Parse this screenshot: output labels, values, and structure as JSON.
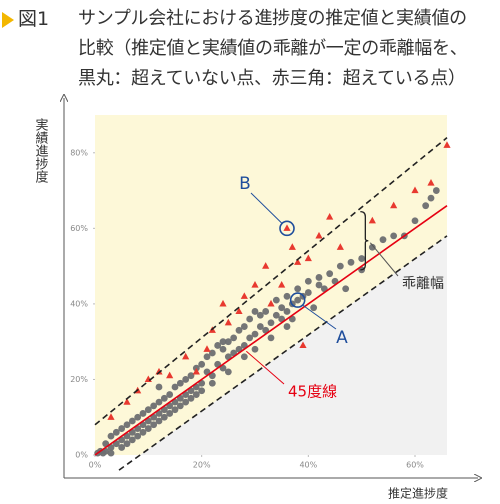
{
  "chart_data": {
    "type": "scatter",
    "figure_label": "図1",
    "title_lines": [
      "サンプル会社における進捗度の推定値と実績値の",
      "比較（推定値と実績値の乖離が一定の乖離幅を、",
      "黒丸：超えていない点、赤三角：超えている点）"
    ],
    "xlabel": "推定進捗度",
    "ylabel": "実績進捗度",
    "xlim": [
      0,
      66
    ],
    "ylim": [
      0,
      90
    ],
    "xticks": [
      {
        "value": 0,
        "label": "0%"
      },
      {
        "value": 20,
        "label": "20%"
      },
      {
        "value": 40,
        "label": "40%"
      },
      {
        "value": 60,
        "label": "60%"
      }
    ],
    "yticks": [
      {
        "value": 0,
        "label": "0%"
      },
      {
        "value": 20,
        "label": "20%"
      },
      {
        "value": 40,
        "label": "40%"
      },
      {
        "value": 60,
        "label": "60%"
      },
      {
        "value": 80,
        "label": "80%"
      }
    ],
    "grid": false,
    "series": [
      {
        "color": "#6d6e71",
        "marker": "circle",
        "x": [
          1,
          2,
          2,
          3,
          3,
          4,
          4,
          5,
          5,
          5,
          6,
          6,
          6,
          7,
          7,
          7,
          8,
          8,
          8,
          9,
          9,
          9,
          10,
          10,
          10,
          11,
          11,
          11,
          12,
          12,
          12,
          13,
          13,
          13,
          14,
          14,
          14,
          15,
          15,
          15,
          16,
          16,
          16,
          17,
          17,
          17,
          18,
          18,
          18,
          19,
          19,
          20,
          20,
          20,
          21,
          21,
          22,
          22,
          22,
          23,
          23,
          24,
          24,
          25,
          25,
          25,
          26,
          26,
          27,
          27,
          28,
          28,
          28,
          29,
          29,
          30,
          30,
          31,
          31,
          32,
          32,
          33,
          33,
          34,
          34,
          35,
          35,
          36,
          36,
          37,
          37,
          38,
          38,
          39,
          40,
          40,
          41,
          42,
          42,
          43,
          44,
          45,
          46,
          47,
          48,
          50,
          50,
          52,
          54,
          56,
          58,
          60,
          62,
          63,
          64,
          0.5,
          1.5,
          3,
          12,
          19,
          24,
          30,
          36
        ],
        "y": [
          1,
          3,
          1,
          2,
          5,
          3,
          6,
          4,
          2,
          7,
          5,
          8,
          3,
          6,
          9,
          4,
          7,
          10,
          5,
          8,
          11,
          6,
          9,
          12,
          7,
          10,
          13,
          8,
          11,
          14,
          9,
          12,
          15,
          10,
          13,
          16,
          11,
          14,
          18,
          12,
          15,
          19,
          13,
          16,
          20,
          14,
          17,
          21,
          15,
          18,
          23,
          19,
          24,
          17,
          22,
          26,
          21,
          27,
          19,
          24,
          29,
          23,
          28,
          26,
          30,
          22,
          27,
          31,
          28,
          33,
          29,
          34,
          26,
          31,
          36,
          32,
          28,
          34,
          37,
          33,
          38,
          35,
          31,
          37,
          41,
          36,
          39,
          38,
          42,
          40,
          36,
          41,
          44,
          42,
          43,
          46,
          39,
          45,
          47,
          44,
          48,
          46,
          50,
          44,
          51,
          52,
          49,
          55,
          57,
          58,
          58,
          62,
          66,
          68,
          70,
          0.5,
          0.5,
          0.5,
          18,
          16,
          30,
          38,
          34
        ]
      },
      {
        "color": "#e8392f",
        "marker": "triangle",
        "x": [
          3,
          6,
          8,
          10,
          12,
          14,
          17,
          19,
          21,
          22,
          24,
          25,
          27,
          28,
          30,
          32,
          33,
          35,
          36,
          37,
          38,
          40,
          42,
          44,
          46,
          52,
          56,
          60,
          63,
          66,
          39
        ],
        "y": [
          10,
          14,
          17,
          20,
          22,
          21,
          26,
          22,
          28,
          33,
          40,
          35,
          38,
          42,
          45,
          50,
          40,
          45,
          60,
          55,
          51,
          52,
          58,
          63,
          55,
          62,
          66,
          70,
          72,
          82,
          29
        ]
      }
    ],
    "lines": [
      {
        "color": "#e60012",
        "style": "solid",
        "from": [
          0,
          0
        ],
        "to": [
          66,
          66
        ]
      },
      {
        "color": "#222222",
        "style": "dashed",
        "from": [
          0,
          8
        ],
        "to": [
          66,
          84
        ]
      },
      {
        "color": "#222222",
        "style": "dashed",
        "from": [
          4.5,
          -4
        ],
        "to": [
          66,
          58
        ]
      }
    ],
    "background": {
      "upper": "#fdf8d8",
      "lower": "#f1f1f1"
    },
    "annotations": [
      {
        "text": "B",
        "color": "#1f4e9c",
        "x": 36,
        "y": 60
      },
      {
        "text": "A",
        "color": "#1f4e9c",
        "x": 38,
        "y": 41
      },
      {
        "text": "45度線",
        "color": "#e60012",
        "x": 28
      },
      {
        "text": "乖離幅",
        "color": "#333333",
        "x": 49
      }
    ]
  }
}
